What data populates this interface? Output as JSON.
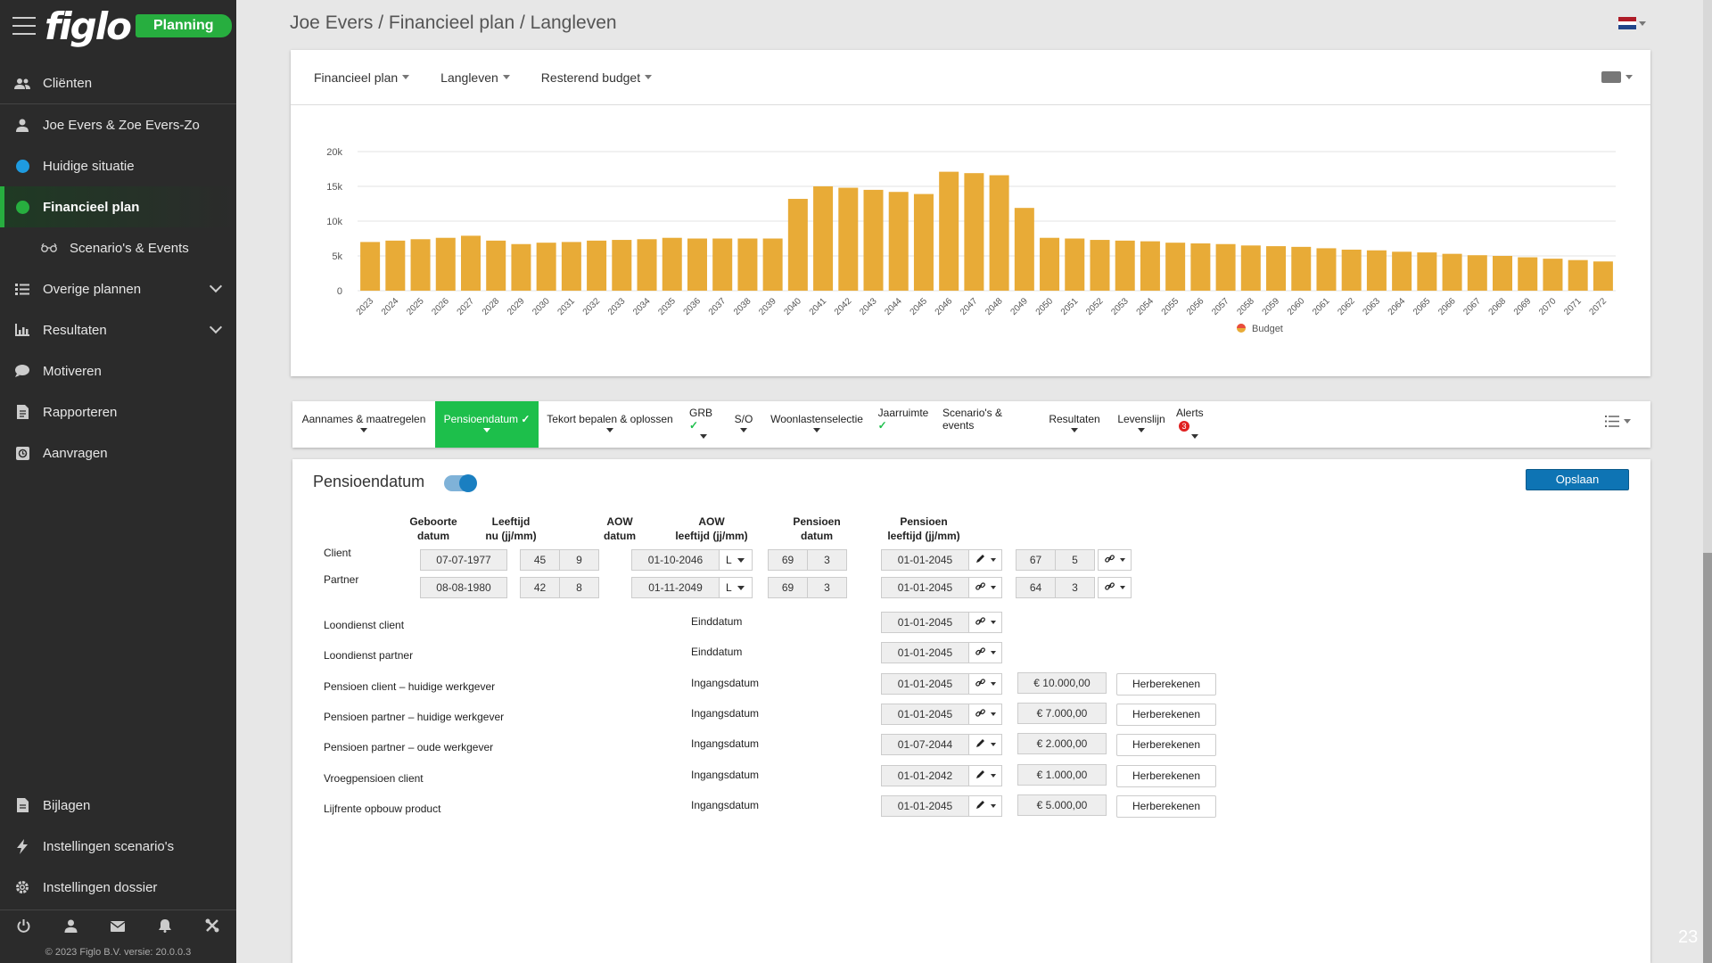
{
  "app": {
    "logo": "figlo",
    "badge": "Planning"
  },
  "sidebar": {
    "items": [
      {
        "label": "Cliënten",
        "icon": "users-icon"
      },
      {
        "label": "Joe Evers & Zoe Evers-Zo",
        "icon": "user-icon"
      },
      {
        "label": "Huidige situatie",
        "icon": "blue-dot-icon"
      },
      {
        "label": "Financieel plan",
        "icon": "green-dot-icon"
      },
      {
        "label": "Scenario's & Events",
        "icon": "glasses-icon"
      },
      {
        "label": "Overige plannen",
        "icon": "list-icon"
      },
      {
        "label": "Resultaten",
        "icon": "bar-chart-icon"
      },
      {
        "label": "Motiveren",
        "icon": "chat-icon"
      },
      {
        "label": "Rapporteren",
        "icon": "document-icon"
      },
      {
        "label": "Aanvragen",
        "icon": "request-icon"
      }
    ],
    "bottom_items": [
      {
        "label": "Bijlagen",
        "icon": "file-icon"
      },
      {
        "label": "Instellingen scenario's",
        "icon": "bolt-icon"
      },
      {
        "label": "Instellingen dossier",
        "icon": "gear-icon"
      }
    ],
    "footer_icons": [
      "power-icon",
      "user-icon",
      "mail-icon",
      "bell-icon",
      "tools-icon"
    ],
    "copyright": "© 2023 Figlo B.V. versie: 20.0.0.3"
  },
  "header": {
    "breadcrumb": "Joe Evers / Financieel plan / Langleven"
  },
  "toolbar": {
    "plan": "Financieel plan",
    "scenario": "Langleven",
    "view": "Resterend budget"
  },
  "chart_data": {
    "type": "bar",
    "categories": [
      "2023",
      "2024",
      "2025",
      "2026",
      "2027",
      "2028",
      "2029",
      "2030",
      "2031",
      "2032",
      "2033",
      "2034",
      "2035",
      "2036",
      "2037",
      "2038",
      "2039",
      "2040",
      "2041",
      "2042",
      "2043",
      "2044",
      "2045",
      "2046",
      "2047",
      "2048",
      "2049",
      "2050",
      "2051",
      "2052",
      "2053",
      "2054",
      "2055",
      "2056",
      "2057",
      "2058",
      "2059",
      "2060",
      "2061",
      "2062",
      "2063",
      "2064",
      "2065",
      "2066",
      "2067",
      "2068",
      "2069",
      "2070",
      "2071",
      "2072"
    ],
    "series": [
      {
        "name": "Budget",
        "color": "#e8ab37",
        "values": [
          7000,
          7200,
          7400,
          7600,
          7900,
          7200,
          6700,
          6900,
          7000,
          7200,
          7300,
          7400,
          7600,
          7500,
          7500,
          7500,
          7500,
          13200,
          15000,
          14800,
          14500,
          14200,
          13900,
          17100,
          16900,
          16600,
          11900,
          7600,
          7500,
          7300,
          7200,
          7100,
          6900,
          6800,
          6700,
          6500,
          6400,
          6300,
          6100,
          5900,
          5800,
          5600,
          5500,
          5300,
          5100,
          5000,
          4800,
          4600,
          4400,
          4200
        ]
      }
    ],
    "yticks": [
      "0",
      "5k",
      "10k",
      "15k",
      "20k"
    ],
    "ylim": [
      0,
      20000
    ],
    "legend": "bottom-center",
    "grid": true
  },
  "tabs": [
    {
      "label": "Aannames & maatregelen",
      "caret": true,
      "check": false
    },
    {
      "label": "Pensioendatum",
      "caret": true,
      "check": true,
      "active": true
    },
    {
      "label": "Tekort bepalen & oplossen",
      "caret": true,
      "check": false
    },
    {
      "label": "GRB",
      "caret": true,
      "check": true
    },
    {
      "label": "S/O",
      "caret": true,
      "check": false
    },
    {
      "label": "Woonlastenselectie",
      "caret": true,
      "check": false
    },
    {
      "label": "Jaarruimte",
      "caret": false,
      "check": true
    },
    {
      "label": "Scenario's & events",
      "caret": false,
      "check": false
    },
    {
      "label": "Resultaten",
      "caret": true,
      "check": false
    },
    {
      "label": "Levenslijn",
      "caret": true,
      "check": false
    },
    {
      "label": "Alerts",
      "caret": true,
      "check": false,
      "badge": "3"
    }
  ],
  "section": {
    "title": "Pensioendatum",
    "save": "Opslaan",
    "headers": {
      "geboorte": [
        "Geboorte",
        "datum"
      ],
      "leeftijd": [
        "Leeftijd",
        "nu (jj/mm)"
      ],
      "aow_datum": [
        "AOW",
        "datum"
      ],
      "aow_leeftijd": [
        "AOW",
        "leeftijd  (jj/mm)"
      ],
      "pensioen_datum": [
        "Pensioen",
        "datum"
      ],
      "pensioen_leeftijd": [
        "Pensioen",
        "leeftijd  (jj/mm)"
      ]
    },
    "persons": [
      {
        "label": "Client",
        "birth": "07-07-1977",
        "age_y": "45",
        "age_m": "9",
        "aow_date": "01-10-2046",
        "aow_sel": "L",
        "aow_y": "69",
        "aow_m": "3",
        "pension_date": "01-01-2045",
        "pension_icon": "pencil-icon",
        "pension_y": "67",
        "pension_m": "5",
        "link_icon": "link-icon"
      },
      {
        "label": "Partner",
        "birth": "08-08-1980",
        "age_y": "42",
        "age_m": "8",
        "aow_date": "01-11-2049",
        "aow_sel": "L",
        "aow_y": "69",
        "aow_m": "3",
        "pension_date": "01-01-2045",
        "pension_icon": "link-icon",
        "pension_y": "64",
        "pension_m": "3",
        "link_icon": "link-icon"
      }
    ],
    "items": [
      {
        "label": "Loondienst  client",
        "date_label": "Einddatum",
        "date": "01-01-2045",
        "icon": "link-icon",
        "amount": "",
        "button": ""
      },
      {
        "label": "Loondienst  partner",
        "date_label": "Einddatum",
        "date": "01-01-2045",
        "icon": "link-icon",
        "amount": "",
        "button": ""
      },
      {
        "label": "Pensioen client  – huidige  werkgever",
        "date_label": "Ingangsdatum",
        "date": "01-01-2045",
        "icon": "link-icon",
        "amount": "€ 10.000,00",
        "button": "Herberekenen"
      },
      {
        "label": "Pensioen partner  – huidige  werkgever",
        "date_label": "Ingangsdatum",
        "date": "01-01-2045",
        "icon": "link-icon",
        "amount": "€ 7.000,00",
        "button": "Herberekenen"
      },
      {
        "label": "Pensioen partner  – oude  werkgever",
        "date_label": "Ingangsdatum",
        "date": "01-07-2044",
        "icon": "pencil-icon",
        "amount": "€ 2.000,00",
        "button": "Herberekenen"
      },
      {
        "label": "Vroegpensioen  client",
        "date_label": "Ingangsdatum",
        "date": "01-01-2042",
        "icon": "pencil-icon",
        "amount": "€ 1.000,00",
        "button": "Herberekenen"
      },
      {
        "label": "Lijfrente  opbouw  product",
        "date_label": "Ingangsdatum",
        "date": "01-01-2045",
        "icon": "pencil-icon",
        "amount": "€ 5.000,00",
        "button": "Herberekenen"
      }
    ]
  },
  "page_number": "23"
}
